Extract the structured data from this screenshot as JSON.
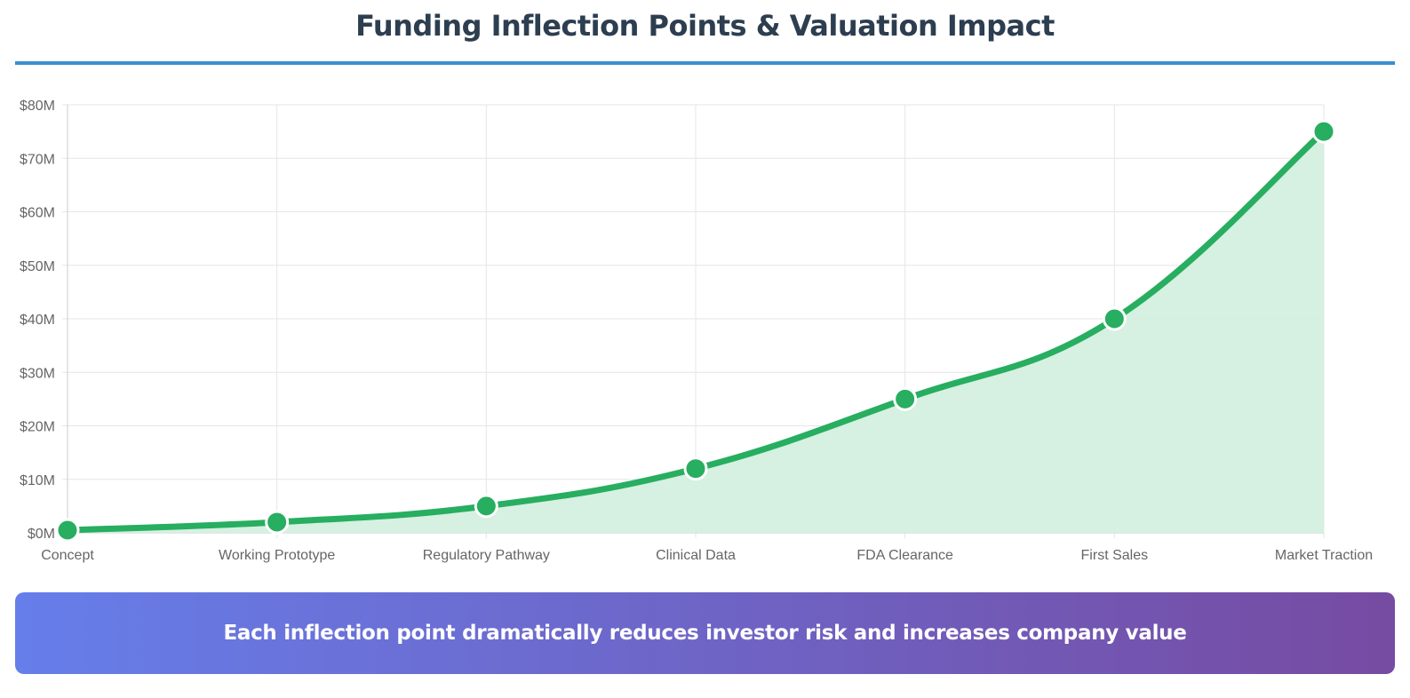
{
  "header": {
    "title": "Funding Inflection Points & Valuation Impact"
  },
  "banner": {
    "text": "Each inflection point dramatically reduces investor risk and increases company value"
  },
  "colors": {
    "title": "#2c3e50",
    "rule": "#3a8fd0",
    "line": "#27ae60",
    "area": "#d4efdf",
    "banner_start": "#667eea",
    "banner_end": "#764ba2"
  },
  "chart_data": {
    "type": "line",
    "title": "",
    "xlabel": "",
    "ylabel": "",
    "categories": [
      "Concept",
      "Working Prototype",
      "Regulatory Pathway",
      "Clinical Data",
      "FDA Clearance",
      "First Sales",
      "Market Traction"
    ],
    "series": [
      {
        "values": [
          0.5,
          2,
          5,
          12,
          25,
          40,
          75
        ]
      }
    ],
    "ylim": [
      0,
      80
    ],
    "yticks": [
      "$0M",
      "$10M",
      "$20M",
      "$30M",
      "$40M",
      "$50M",
      "$60M",
      "$70M",
      "$80M"
    ],
    "fill": true,
    "smooth": true,
    "grid": true,
    "legend": "none"
  }
}
